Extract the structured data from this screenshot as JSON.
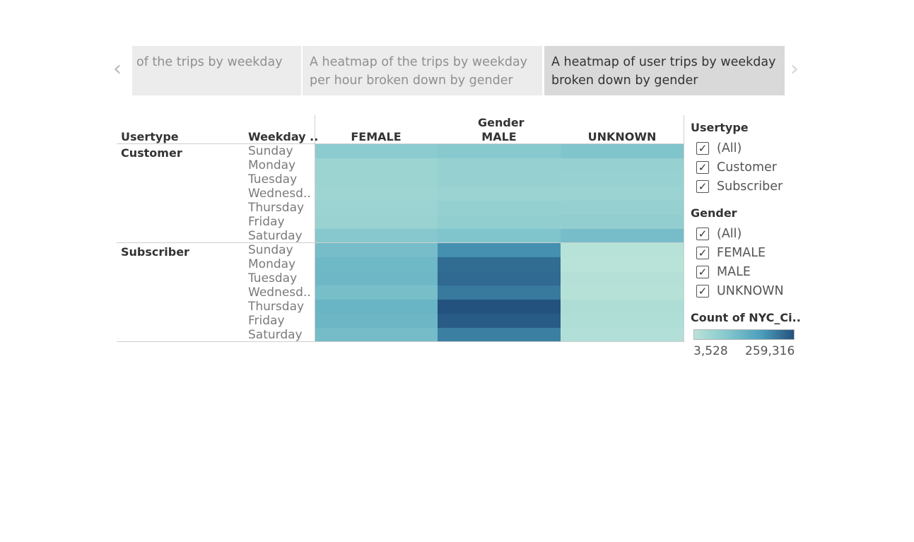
{
  "nav": {
    "prev_icon": "chevron-left-icon",
    "next_icon": "chevron-right-icon",
    "prev_symbol": "‹",
    "next_symbol": "›"
  },
  "story_points": [
    {
      "text": "of the trips by weekday",
      "active": false
    },
    {
      "text": "A heatmap of the trips by weekday per hour broken down by gender",
      "active": false
    },
    {
      "text": "A heatmap of user trips by weekday broken down by gender",
      "active": true
    }
  ],
  "headers": {
    "usertype": "Usertype",
    "weekday": "Weekday ..",
    "gender_group": "Gender"
  },
  "filters": {
    "usertype": {
      "title": "Usertype",
      "options": [
        {
          "label": "(All)",
          "checked": true
        },
        {
          "label": "Customer",
          "checked": true
        },
        {
          "label": "Subscriber",
          "checked": true
        }
      ]
    },
    "gender": {
      "title": "Gender",
      "options": [
        {
          "label": "(All)",
          "checked": true
        },
        {
          "label": "FEMALE",
          "checked": true
        },
        {
          "label": "MALE",
          "checked": true
        },
        {
          "label": "UNKNOWN",
          "checked": true
        }
      ]
    },
    "check_symbol": "✓"
  },
  "color_legend": {
    "title": "Count of NYC_Ci..",
    "min_label": "3,528",
    "max_label": "259,316",
    "colors": [
      "#b9e3d8",
      "#84c7cd",
      "#4d9fbc",
      "#23527e"
    ]
  },
  "chart_data": {
    "type": "heatmap",
    "columns": [
      "FEMALE",
      "MALE",
      "UNKNOWN"
    ],
    "column_group": "Gender",
    "row_groups": [
      {
        "name": "Customer",
        "days": [
          "Sunday",
          "Monday",
          "Tuesday",
          "Wednesd..",
          "Thursday",
          "Friday",
          "Saturday"
        ],
        "values": [
          [
            24000,
            28000,
            36000
          ],
          [
            12000,
            16000,
            16000
          ],
          [
            12000,
            16000,
            15000
          ],
          [
            11000,
            13000,
            13000
          ],
          [
            13000,
            17000,
            16000
          ],
          [
            14000,
            20000,
            19000
          ],
          [
            30000,
            36000,
            48000
          ]
        ]
      },
      {
        "name": "Subscriber",
        "days": [
          "Sunday",
          "Monday",
          "Tuesday",
          "Wednesd..",
          "Thursday",
          "Friday",
          "Saturday"
        ],
        "values": [
          [
            48000,
            140000,
            3600
          ],
          [
            58000,
            205000,
            3528
          ],
          [
            59000,
            210000,
            3800
          ],
          [
            46000,
            180000,
            3700
          ],
          [
            66000,
            259316,
            5000
          ],
          [
            62000,
            240000,
            4500
          ],
          [
            50000,
            170000,
            4000
          ]
        ]
      }
    ],
    "color_range": [
      3528,
      259316
    ]
  }
}
